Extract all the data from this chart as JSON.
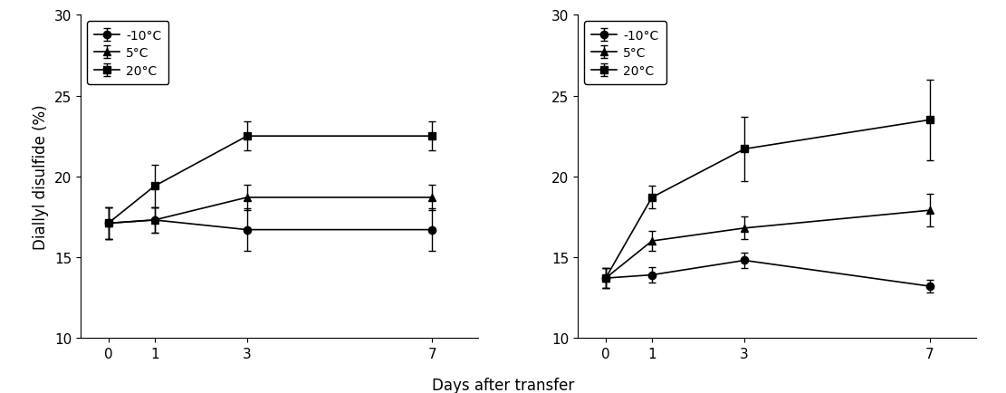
{
  "x": [
    0,
    1,
    3,
    7
  ],
  "left": {
    "neg10": {
      "y": [
        17.1,
        17.3,
        16.7,
        16.7
      ],
      "yerr": [
        1.0,
        0.8,
        1.3,
        1.3
      ]
    },
    "pos5": {
      "y": [
        17.1,
        17.3,
        18.7,
        18.7
      ],
      "yerr": [
        1.0,
        0.8,
        0.8,
        0.8
      ]
    },
    "pos20": {
      "y": [
        17.1,
        19.4,
        22.5,
        22.5
      ],
      "yerr": [
        1.0,
        1.3,
        0.9,
        0.9
      ]
    }
  },
  "right": {
    "neg10": {
      "y": [
        13.7,
        13.9,
        14.8,
        13.2
      ],
      "yerr": [
        0.6,
        0.5,
        0.5,
        0.4
      ]
    },
    "pos5": {
      "y": [
        13.7,
        16.0,
        16.8,
        17.9
      ],
      "yerr": [
        0.6,
        0.6,
        0.7,
        1.0
      ]
    },
    "pos20": {
      "y": [
        13.7,
        18.7,
        21.7,
        23.5
      ],
      "yerr": [
        0.6,
        0.7,
        2.0,
        2.5
      ]
    }
  },
  "ylim": [
    10,
    30
  ],
  "yticks": [
    10,
    15,
    20,
    25,
    30
  ],
  "xlabel": "Days after transfer",
  "ylabel": "Diallyl disulfide (%)",
  "legend_labels": [
    "-10°C",
    "5°C",
    "20°C"
  ],
  "line_color": "#000000",
  "marker_circle": "o",
  "marker_triangle": "^",
  "marker_square": "s",
  "markersize": 6,
  "linewidth": 1.2,
  "capsize": 3,
  "elinewidth": 1.0,
  "tick_fontsize": 11,
  "label_fontsize": 12,
  "legend_fontsize": 10
}
